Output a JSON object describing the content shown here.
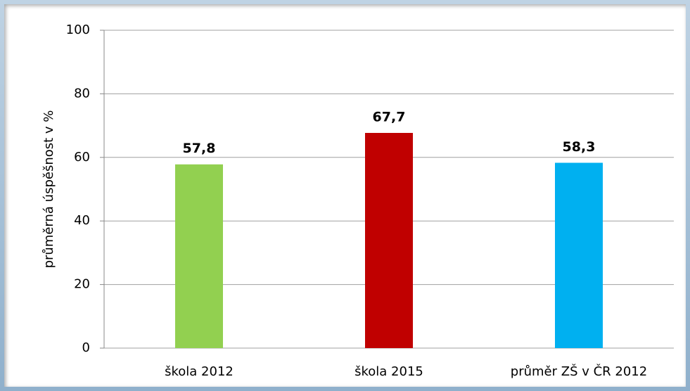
{
  "chart_data": {
    "type": "bar",
    "ylabel": "průměrná úspěšnost  v  %",
    "categories": [
      "škola 2012",
      "škola 2015",
      "průměr ZŠ v ČR 2012"
    ],
    "values": [
      57.8,
      67.7,
      58.3
    ],
    "value_labels": [
      "57,8",
      "67,7",
      "58,3"
    ],
    "colors": [
      "#92d050",
      "#c00000",
      "#00b0f0"
    ],
    "ylim": [
      0,
      100
    ],
    "yticks": [
      0,
      20,
      40,
      60,
      80,
      100
    ],
    "grid": true
  }
}
